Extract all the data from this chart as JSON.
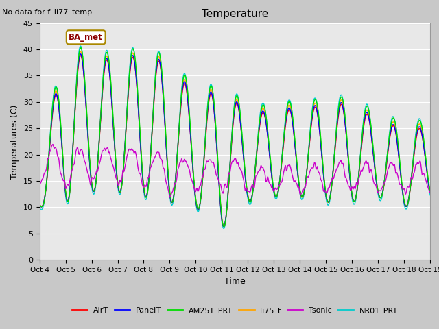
{
  "title": "Temperature",
  "xlabel": "Time",
  "ylabel": "Temperatures (C)",
  "top_left_text": "No data for f_li77_temp",
  "legend_label_text": "BA_met",
  "ylim": [
    0,
    45
  ],
  "yticks": [
    0,
    5,
    10,
    15,
    20,
    25,
    30,
    35,
    40,
    45
  ],
  "xlim_start": 0,
  "xlim_end": 15,
  "xtick_labels": [
    "Oct 4",
    "Oct 5",
    "Oct 6",
    "Oct 7",
    "Oct 8",
    "Oct 9",
    "Oct 10",
    "Oct 11",
    "Oct 12",
    "Oct 13",
    "Oct 14",
    "Oct 15",
    "Oct 16",
    "Oct 17",
    "Oct 18",
    "Oct 19"
  ],
  "series": {
    "AirT": {
      "color": "#ff0000",
      "zorder": 4
    },
    "PanelT": {
      "color": "#0000ff",
      "zorder": 4
    },
    "AM25T_PRT": {
      "color": "#00dd00",
      "zorder": 4
    },
    "li75_t": {
      "color": "#ffa500",
      "zorder": 4
    },
    "Tsonic": {
      "color": "#cc00cc",
      "zorder": 5
    },
    "NR01_PRT": {
      "color": "#00cccc",
      "zorder": 3
    }
  },
  "background_color": "#c8c8c8",
  "plot_bg_color": "#e8e8e8",
  "grid_color": "#ffffff",
  "linewidth": 1.0,
  "figsize": [
    6.4,
    4.8
  ],
  "dpi": 100
}
